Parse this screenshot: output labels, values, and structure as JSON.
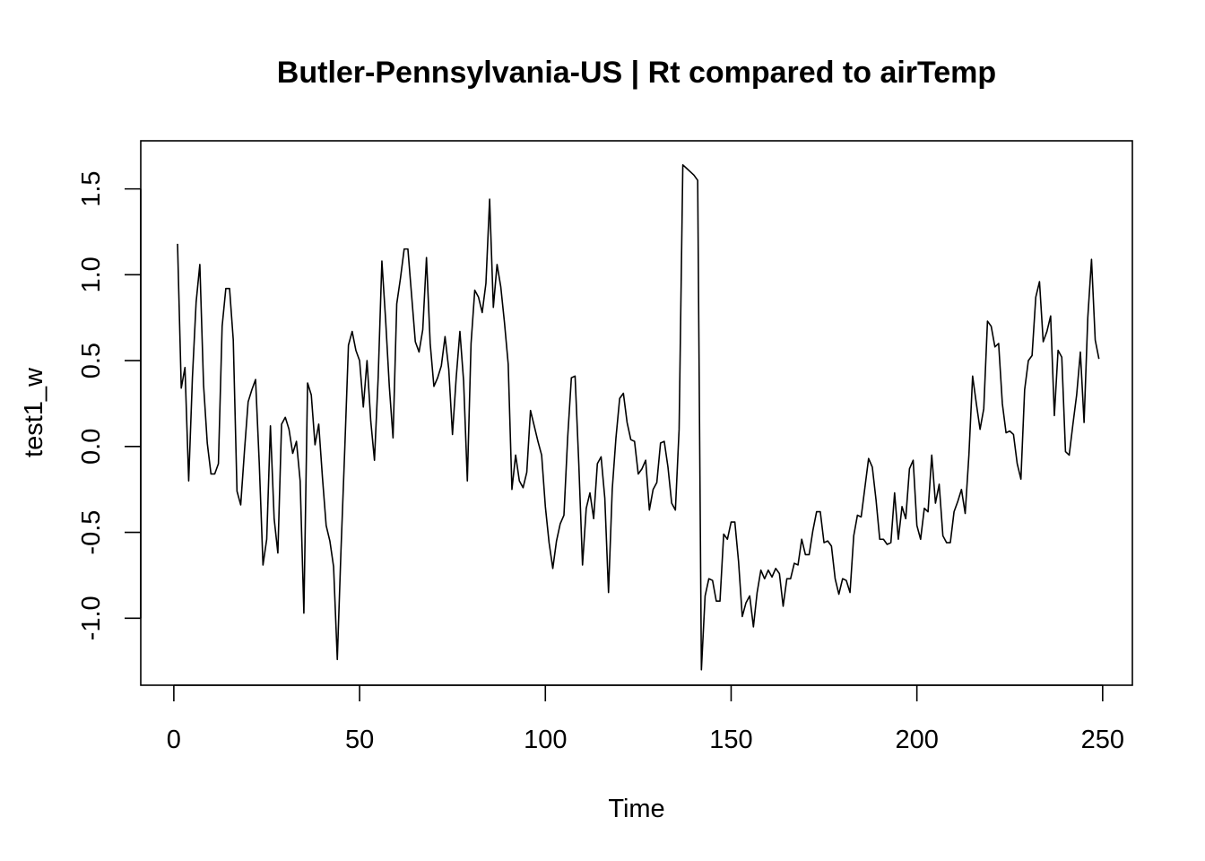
{
  "chart_data": {
    "type": "line",
    "title": "Butler-Pennsylvania-US | Rt compared to airTemp",
    "xlabel": "Time",
    "ylabel": "test1_w",
    "xlim": [
      -8.9,
      258
    ],
    "ylim": [
      -1.39,
      1.78
    ],
    "x_ticks": [
      0,
      50,
      100,
      150,
      200,
      250
    ],
    "x_tick_labels": [
      "0",
      "50",
      "100",
      "150",
      "200",
      "250"
    ],
    "y_ticks": [
      -1.0,
      -0.5,
      0.0,
      0.5,
      1.0,
      1.5
    ],
    "y_tick_labels": [
      "-1.0",
      "-0.5",
      "0.0",
      "0.5",
      "1.0",
      "1.5"
    ],
    "grid": false,
    "legend": "none",
    "line_color": "#000000",
    "series": [
      {
        "x_start": 1,
        "values": [
          1.18,
          0.34,
          0.46,
          -0.2,
          0.4,
          0.84,
          1.06,
          0.36,
          0.02,
          -0.16,
          -0.16,
          -0.1,
          0.7,
          0.92,
          0.92,
          0.62,
          -0.26,
          -0.34,
          -0.03,
          0.26,
          0.33,
          0.39,
          -0.1,
          -0.69,
          -0.54,
          0.12,
          -0.42,
          -0.62,
          0.13,
          0.17,
          0.1,
          -0.04,
          0.03,
          -0.2,
          -0.97,
          0.37,
          0.3,
          0.01,
          0.13,
          -0.18,
          -0.46,
          -0.55,
          -0.7,
          -1.24,
          -0.6,
          -0.02,
          0.59,
          0.67,
          0.56,
          0.5,
          0.23,
          0.5,
          0.15,
          -0.08,
          0.4,
          1.08,
          0.74,
          0.35,
          0.05,
          0.83,
          0.98,
          1.15,
          1.15,
          0.88,
          0.61,
          0.55,
          0.68,
          1.1,
          0.6,
          0.35,
          0.4,
          0.47,
          0.64,
          0.45,
          0.07,
          0.4,
          0.67,
          0.38,
          -0.2,
          0.6,
          0.91,
          0.87,
          0.78,
          0.95,
          1.44,
          0.81,
          1.06,
          0.93,
          0.72,
          0.48,
          -0.25,
          -0.05,
          -0.2,
          -0.24,
          -0.15,
          0.21,
          0.12,
          0.03,
          -0.05,
          -0.35,
          -0.56,
          -0.71,
          -0.55,
          -0.45,
          -0.4,
          0.05,
          0.4,
          0.41,
          -0.1,
          -0.69,
          -0.36,
          -0.27,
          -0.42,
          -0.1,
          -0.06,
          -0.3,
          -0.85,
          -0.25,
          0.05,
          0.28,
          0.31,
          0.14,
          0.04,
          0.03,
          -0.16,
          -0.13,
          -0.08,
          -0.37,
          -0.25,
          -0.21,
          0.02,
          0.03,
          -0.12,
          -0.33,
          -0.37,
          0.1,
          1.64,
          1.62,
          1.6,
          1.58,
          1.55,
          -1.3,
          -0.87,
          -0.77,
          -0.78,
          -0.9,
          -0.9,
          -0.51,
          -0.54,
          -0.44,
          -0.44,
          -0.67,
          -0.99,
          -0.91,
          -0.87,
          -1.05,
          -0.85,
          -0.72,
          -0.77,
          -0.72,
          -0.76,
          -0.71,
          -0.74,
          -0.93,
          -0.77,
          -0.77,
          -0.68,
          -0.69,
          -0.54,
          -0.63,
          -0.63,
          -0.49,
          -0.38,
          -0.38,
          -0.56,
          -0.55,
          -0.58,
          -0.77,
          -0.86,
          -0.77,
          -0.78,
          -0.85,
          -0.52,
          -0.4,
          -0.41,
          -0.24,
          -0.07,
          -0.12,
          -0.31,
          -0.54,
          -0.54,
          -0.57,
          -0.56,
          -0.27,
          -0.54,
          -0.35,
          -0.42,
          -0.13,
          -0.08,
          -0.46,
          -0.54,
          -0.36,
          -0.38,
          -0.05,
          -0.33,
          -0.22,
          -0.52,
          -0.56,
          -0.56,
          -0.38,
          -0.32,
          -0.25,
          -0.39,
          -0.05,
          0.41,
          0.25,
          0.1,
          0.22,
          0.73,
          0.7,
          0.58,
          0.6,
          0.25,
          0.08,
          0.09,
          0.07,
          -0.1,
          -0.19,
          0.33,
          0.5,
          0.53,
          0.87,
          0.96,
          0.61,
          0.67,
          0.76,
          0.18,
          0.56,
          0.52,
          -0.03,
          -0.05,
          0.13,
          0.3,
          0.55,
          0.14,
          0.75,
          1.09,
          0.62,
          0.51
        ]
      }
    ]
  }
}
